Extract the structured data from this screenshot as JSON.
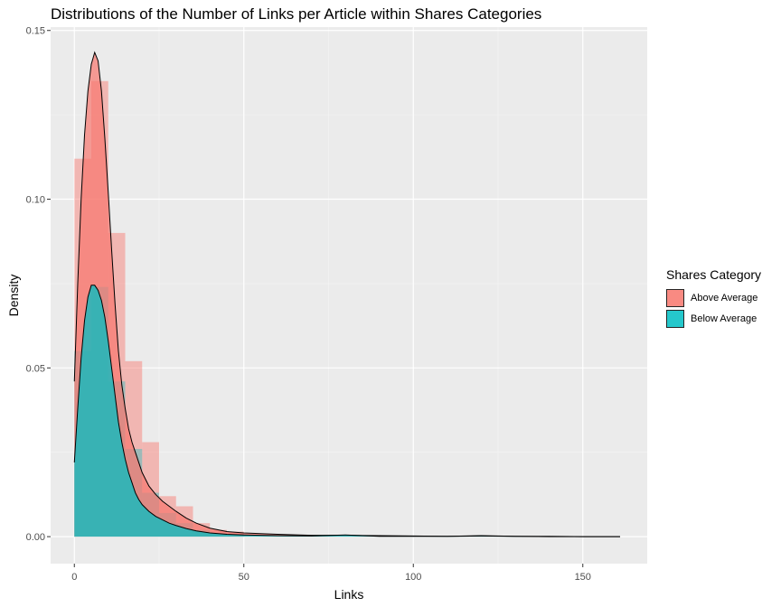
{
  "chart_data": {
    "type": "area",
    "title": "Distributions of the Number of Links per Article within Shares Categories",
    "xlabel": "Links",
    "ylabel": "Density",
    "xlim": [
      -7,
      169
    ],
    "ylim": [
      -0.008,
      0.151
    ],
    "x_ticks": [
      0,
      50,
      100,
      150
    ],
    "y_ticks": [
      0.0,
      0.05,
      0.1,
      0.15
    ],
    "y_tick_labels": [
      "0.00",
      "0.05",
      "0.10",
      "0.15"
    ],
    "grid": true,
    "legend": {
      "title": "Shares Category",
      "position": "right",
      "entries": [
        {
          "label": "Above Average",
          "color": "#F8766D"
        },
        {
          "label": "Below Average",
          "color": "#00BFC4"
        }
      ]
    },
    "histogram": {
      "bin_width": 5,
      "bins": [
        {
          "x0": 0,
          "x1": 5,
          "above": 0.112,
          "below": 0.055
        },
        {
          "x0": 5,
          "x1": 10,
          "above": 0.135,
          "below": 0.074
        },
        {
          "x0": 10,
          "x1": 15,
          "above": 0.09,
          "below": 0.046
        },
        {
          "x0": 15,
          "x1": 20,
          "above": 0.052,
          "below": 0.026
        },
        {
          "x0": 20,
          "x1": 25,
          "above": 0.028,
          "below": 0.013
        },
        {
          "x0": 25,
          "x1": 30,
          "above": 0.012,
          "below": 0.007
        },
        {
          "x0": 30,
          "x1": 35,
          "above": 0.009,
          "below": 0.004
        },
        {
          "x0": 35,
          "x1": 40,
          "above": 0.004,
          "below": 0.002
        },
        {
          "x0": 40,
          "x1": 45,
          "above": 0.002,
          "below": 0.001
        },
        {
          "x0": 45,
          "x1": 50,
          "above": 0.0015,
          "below": 0.0008
        }
      ]
    },
    "series": [
      {
        "name": "Above Average",
        "color": "#F8766D",
        "x": [
          0,
          1,
          2,
          3,
          4,
          5,
          6,
          7,
          8,
          9,
          10,
          11,
          12,
          13,
          14,
          15,
          16,
          17,
          18,
          19,
          20,
          22,
          24,
          26,
          28,
          30,
          33,
          36,
          40,
          45,
          50,
          55,
          60,
          70,
          80,
          90,
          100,
          110,
          120,
          130,
          140,
          150,
          161
        ],
        "y": [
          0.046,
          0.075,
          0.1,
          0.119,
          0.132,
          0.14,
          0.1435,
          0.141,
          0.132,
          0.118,
          0.102,
          0.085,
          0.069,
          0.055,
          0.045,
          0.038,
          0.032,
          0.028,
          0.025,
          0.022,
          0.019,
          0.015,
          0.0125,
          0.0105,
          0.009,
          0.0075,
          0.0055,
          0.004,
          0.0025,
          0.0015,
          0.0011,
          0.0009,
          0.0007,
          0.0004,
          0.0004,
          0.0003,
          0.0002,
          0.0001,
          0.0003,
          0.0001,
          0.0001,
          0.0,
          0.0
        ]
      },
      {
        "name": "Below Average",
        "color": "#00BFC4",
        "x": [
          0,
          1,
          2,
          3,
          4,
          5,
          6,
          7,
          8,
          9,
          10,
          11,
          12,
          13,
          14,
          15,
          16,
          17,
          18,
          19,
          20,
          22,
          24,
          26,
          28,
          30,
          33,
          36,
          40,
          45,
          50,
          55,
          60,
          70,
          80,
          90,
          100,
          110,
          120,
          130,
          140,
          150,
          161
        ],
        "y": [
          0.022,
          0.038,
          0.053,
          0.064,
          0.071,
          0.0745,
          0.0745,
          0.073,
          0.07,
          0.065,
          0.058,
          0.05,
          0.042,
          0.034,
          0.028,
          0.023,
          0.019,
          0.016,
          0.013,
          0.011,
          0.0095,
          0.0075,
          0.006,
          0.005,
          0.004,
          0.0033,
          0.0024,
          0.0017,
          0.0011,
          0.0007,
          0.0005,
          0.0004,
          0.0003,
          0.0002,
          0.0005,
          0.0001,
          0.0001,
          0.0001,
          0.0002,
          0.0001,
          0.0,
          0.0,
          0.0
        ]
      }
    ]
  }
}
